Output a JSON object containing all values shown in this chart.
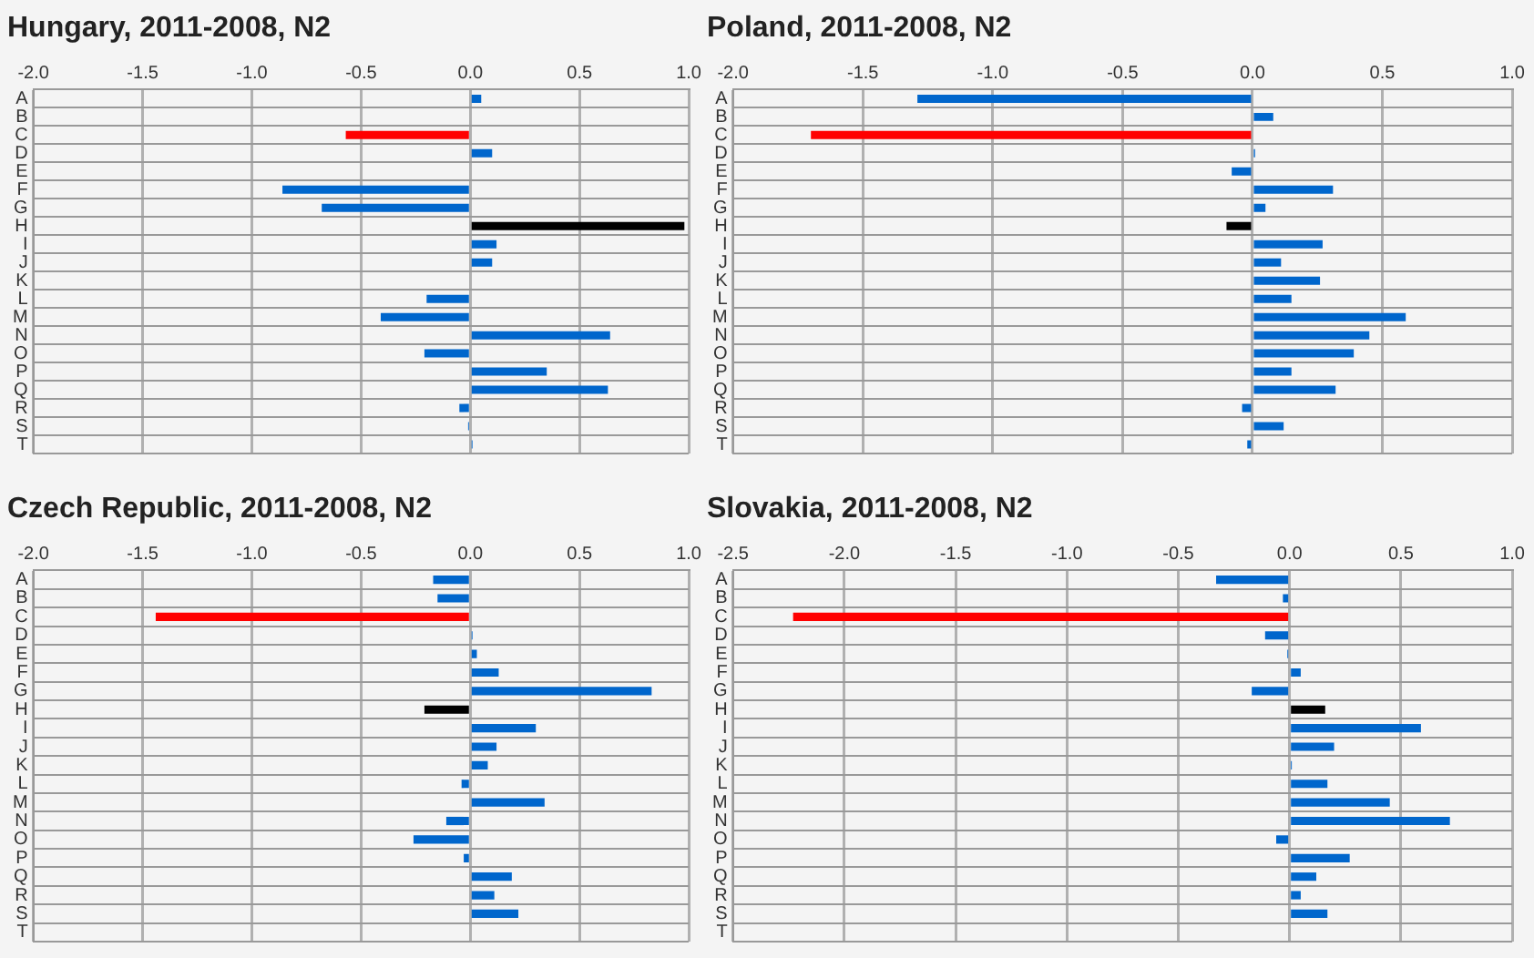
{
  "chart_data": [
    {
      "type": "bar",
      "orientation": "horizontal",
      "title": "Hungary, 2011-2008, N2",
      "categories": [
        "A",
        "B",
        "C",
        "D",
        "E",
        "F",
        "G",
        "H",
        "I",
        "J",
        "K",
        "L",
        "M",
        "N",
        "O",
        "P",
        "Q",
        "R",
        "S",
        "T"
      ],
      "values": [
        0.05,
        0,
        -0.57,
        0.1,
        0,
        -0.86,
        -0.68,
        0.98,
        0.12,
        0.1,
        0,
        -0.2,
        -0.41,
        0.64,
        -0.21,
        0.35,
        0.63,
        -0.05,
        -0.01,
        0.01
      ],
      "colors": [
        "#0066cc",
        "#0066cc",
        "#ff0000",
        "#0066cc",
        "#0066cc",
        "#0066cc",
        "#0066cc",
        "#000000",
        "#0066cc",
        "#0066cc",
        "#0066cc",
        "#0066cc",
        "#0066cc",
        "#0066cc",
        "#0066cc",
        "#0066cc",
        "#0066cc",
        "#0066cc",
        "#0066cc",
        "#0066cc"
      ],
      "xlim": [
        -2,
        1
      ],
      "xticks": [
        {
          "value": -2,
          "label": "-2.0"
        },
        {
          "value": -1.5,
          "label": "-1.5"
        },
        {
          "value": -1,
          "label": "-1.0"
        },
        {
          "value": -0.5,
          "label": "-0.5"
        },
        {
          "value": 0,
          "label": "0.0"
        },
        {
          "value": 0.5,
          "label": "0.5"
        },
        {
          "value": 1,
          "label": "1.0"
        }
      ],
      "grid": true
    },
    {
      "type": "bar",
      "orientation": "horizontal",
      "title": "Poland, 2011-2008, N2",
      "categories": [
        "A",
        "B",
        "C",
        "D",
        "E",
        "F",
        "G",
        "H",
        "I",
        "J",
        "K",
        "L",
        "M",
        "N",
        "O",
        "P",
        "Q",
        "R",
        "S",
        "T"
      ],
      "values": [
        -1.29,
        0.08,
        -1.7,
        0.01,
        -0.08,
        0.31,
        0.05,
        -0.1,
        0.27,
        0.11,
        0.26,
        0.15,
        0.59,
        0.45,
        0.39,
        0.15,
        0.32,
        -0.04,
        0.12,
        -0.02
      ],
      "colors": [
        "#0066cc",
        "#0066cc",
        "#ff0000",
        "#0066cc",
        "#0066cc",
        "#0066cc",
        "#0066cc",
        "#000000",
        "#0066cc",
        "#0066cc",
        "#0066cc",
        "#0066cc",
        "#0066cc",
        "#0066cc",
        "#0066cc",
        "#0066cc",
        "#0066cc",
        "#0066cc",
        "#0066cc",
        "#0066cc"
      ],
      "xlim": [
        -2,
        1
      ],
      "xticks": [
        {
          "value": -2,
          "label": "-2.0"
        },
        {
          "value": -1.5,
          "label": "-1.5"
        },
        {
          "value": -1,
          "label": "-1.0"
        },
        {
          "value": -0.5,
          "label": "-0.5"
        },
        {
          "value": 0,
          "label": "0.0"
        },
        {
          "value": 0.5,
          "label": "0.5"
        },
        {
          "value": 1,
          "label": "1.0"
        }
      ],
      "grid": true
    },
    {
      "type": "bar",
      "orientation": "horizontal",
      "title": "Czech Republic, 2011-2008, N2",
      "categories": [
        "A",
        "B",
        "C",
        "D",
        "E",
        "F",
        "G",
        "H",
        "I",
        "J",
        "K",
        "L",
        "M",
        "N",
        "O",
        "P",
        "Q",
        "R",
        "S",
        "T"
      ],
      "values": [
        -0.17,
        -0.15,
        -1.44,
        0.01,
        0.03,
        0.13,
        0.83,
        -0.21,
        0.3,
        0.12,
        0.08,
        -0.04,
        0.34,
        -0.11,
        -0.26,
        -0.03,
        0.19,
        0.11,
        0.22,
        0
      ],
      "colors": [
        "#0066cc",
        "#0066cc",
        "#ff0000",
        "#0066cc",
        "#0066cc",
        "#0066cc",
        "#0066cc",
        "#000000",
        "#0066cc",
        "#0066cc",
        "#0066cc",
        "#0066cc",
        "#0066cc",
        "#0066cc",
        "#0066cc",
        "#0066cc",
        "#0066cc",
        "#0066cc",
        "#0066cc",
        "#0066cc"
      ],
      "xlim": [
        -2,
        1
      ],
      "xticks": [
        {
          "value": -2,
          "label": "-2.0"
        },
        {
          "value": -1.5,
          "label": "-1.5"
        },
        {
          "value": -1,
          "label": "-1.0"
        },
        {
          "value": -0.5,
          "label": "-0.5"
        },
        {
          "value": 0,
          "label": "0.0"
        },
        {
          "value": 0.5,
          "label": "0.5"
        },
        {
          "value": 1,
          "label": "1.0"
        }
      ],
      "grid": true
    },
    {
      "type": "bar",
      "orientation": "horizontal",
      "title": "Slovakia, 2011-2008, N2",
      "categories": [
        "A",
        "B",
        "C",
        "D",
        "E",
        "F",
        "G",
        "H",
        "I",
        "J",
        "K",
        "L",
        "M",
        "N",
        "O",
        "P",
        "Q",
        "R",
        "S",
        "T"
      ],
      "values": [
        -0.33,
        -0.03,
        -2.23,
        -0.11,
        -0.01,
        0.05,
        -0.17,
        0.16,
        0.59,
        0.2,
        0.01,
        0.17,
        0.45,
        0.72,
        -0.06,
        0.27,
        0.12,
        0.05,
        0.17,
        null
      ],
      "colors": [
        "#0066cc",
        "#0066cc",
        "#ff0000",
        "#0066cc",
        "#0066cc",
        "#0066cc",
        "#0066cc",
        "#000000",
        "#0066cc",
        "#0066cc",
        "#0066cc",
        "#0066cc",
        "#0066cc",
        "#0066cc",
        "#0066cc",
        "#0066cc",
        "#0066cc",
        "#0066cc",
        "#0066cc",
        "#0066cc"
      ],
      "xlim": [
        -2.5,
        1
      ],
      "xticks": [
        {
          "value": -2.5,
          "label": "-2.5"
        },
        {
          "value": -2,
          "label": "-2.0"
        },
        {
          "value": -1.5,
          "label": "-1.5"
        },
        {
          "value": -1,
          "label": "-1.0"
        },
        {
          "value": -0.5,
          "label": "-0.5"
        },
        {
          "value": 0,
          "label": "0.0"
        },
        {
          "value": 0.5,
          "label": "0.5"
        },
        {
          "value": 1,
          "label": "1.0"
        }
      ],
      "grid": true
    }
  ]
}
